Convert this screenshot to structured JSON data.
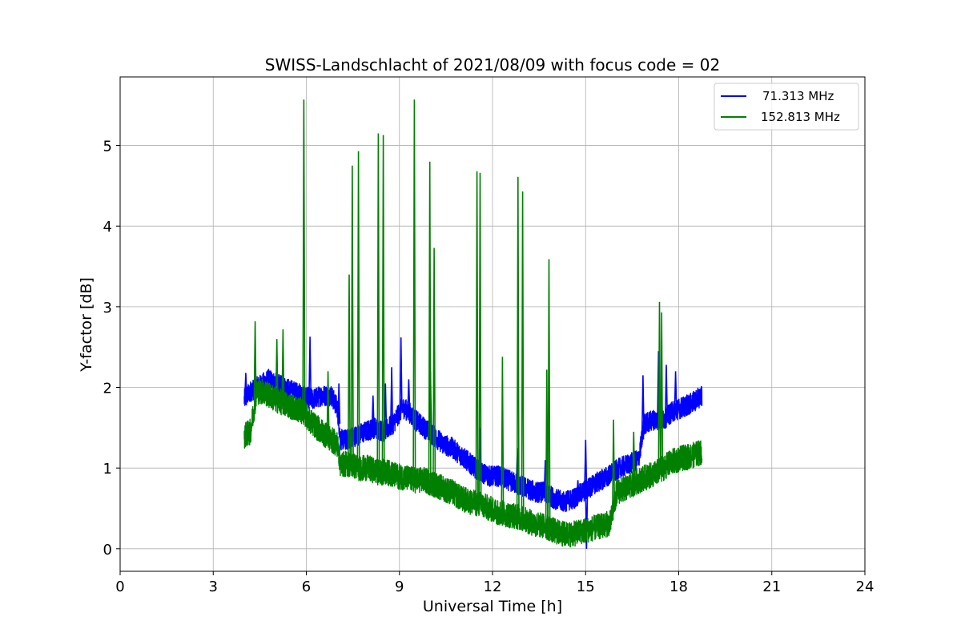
{
  "chart_data": {
    "type": "line",
    "title": "SWISS-Landschlacht of 2021/08/09 with focus code = 02",
    "xlabel": "Universal Time [h]",
    "ylabel": "Y-factor [dB]",
    "xlim": [
      0,
      24
    ],
    "ylim": [
      -0.28,
      5.85
    ],
    "xticks": [
      0,
      3,
      6,
      9,
      12,
      15,
      18,
      21,
      24
    ],
    "xtick_labels": [
      "0",
      "3",
      "6",
      "9",
      "12",
      "15",
      "18",
      "21",
      "24"
    ],
    "yticks": [
      0,
      1,
      2,
      3,
      4,
      5
    ],
    "ytick_labels": [
      "0",
      "1",
      "2",
      "3",
      "4",
      "5"
    ],
    "grid": true,
    "legend_position": "top-right",
    "series": [
      {
        "name": "71.313 MHz",
        "color": "#0000ff",
        "points": [
          [
            4.0,
            1.85
          ],
          [
            4.2,
            1.95
          ],
          [
            4.4,
            2.0
          ],
          [
            4.6,
            2.05
          ],
          [
            4.8,
            2.1
          ],
          [
            5.0,
            2.05
          ],
          [
            5.3,
            2.0
          ],
          [
            5.6,
            1.95
          ],
          [
            5.9,
            1.9
          ],
          [
            6.2,
            1.85
          ],
          [
            6.5,
            1.9
          ],
          [
            6.8,
            1.9
          ],
          [
            7.0,
            1.75
          ],
          [
            7.1,
            1.35
          ],
          [
            7.3,
            1.35
          ],
          [
            7.6,
            1.4
          ],
          [
            7.9,
            1.45
          ],
          [
            8.2,
            1.5
          ],
          [
            8.5,
            1.45
          ],
          [
            8.8,
            1.55
          ],
          [
            9.1,
            1.75
          ],
          [
            9.3,
            1.7
          ],
          [
            9.5,
            1.6
          ],
          [
            9.8,
            1.5
          ],
          [
            10.1,
            1.4
          ],
          [
            10.4,
            1.3
          ],
          [
            10.7,
            1.25
          ],
          [
            11.0,
            1.15
          ],
          [
            11.3,
            1.05
          ],
          [
            11.6,
            0.95
          ],
          [
            11.9,
            0.9
          ],
          [
            12.2,
            0.9
          ],
          [
            12.5,
            0.85
          ],
          [
            12.8,
            0.8
          ],
          [
            13.1,
            0.75
          ],
          [
            13.4,
            0.7
          ],
          [
            13.7,
            0.7
          ],
          [
            14.0,
            0.62
          ],
          [
            14.3,
            0.58
          ],
          [
            14.6,
            0.62
          ],
          [
            14.9,
            0.7
          ],
          [
            15.2,
            0.78
          ],
          [
            15.5,
            0.85
          ],
          [
            15.8,
            0.92
          ],
          [
            16.1,
            1.0
          ],
          [
            16.4,
            1.05
          ],
          [
            16.7,
            1.1
          ],
          [
            16.9,
            1.55
          ],
          [
            17.2,
            1.6
          ],
          [
            17.5,
            1.6
          ],
          [
            17.8,
            1.7
          ],
          [
            18.1,
            1.75
          ],
          [
            18.4,
            1.8
          ],
          [
            18.75,
            1.9
          ]
        ],
        "spikes": [
          [
            4.05,
            2.18
          ],
          [
            6.12,
            2.63
          ],
          [
            7.05,
            2.05
          ],
          [
            8.15,
            1.9
          ],
          [
            8.55,
            2.05
          ],
          [
            8.75,
            2.25
          ],
          [
            9.05,
            2.62
          ],
          [
            9.3,
            2.1
          ],
          [
            10.0,
            2.2
          ],
          [
            11.6,
            1.5
          ],
          [
            12.8,
            1.25
          ],
          [
            13.7,
            1.1
          ],
          [
            14.75,
            0.85
          ],
          [
            15.0,
            1.35
          ],
          [
            15.03,
            0.0
          ],
          [
            16.85,
            2.15
          ],
          [
            17.35,
            2.45
          ],
          [
            17.6,
            2.28
          ],
          [
            17.9,
            2.2
          ]
        ]
      },
      {
        "name": "152.813 MHz",
        "color": "#008000",
        "points": [
          [
            4.0,
            1.4
          ],
          [
            4.2,
            1.45
          ],
          [
            4.4,
            1.95
          ],
          [
            4.6,
            1.95
          ],
          [
            4.8,
            1.9
          ],
          [
            5.0,
            1.85
          ],
          [
            5.3,
            1.8
          ],
          [
            5.6,
            1.75
          ],
          [
            5.9,
            1.7
          ],
          [
            6.2,
            1.55
          ],
          [
            6.5,
            1.45
          ],
          [
            6.8,
            1.35
          ],
          [
            7.0,
            1.3
          ],
          [
            7.1,
            1.05
          ],
          [
            7.4,
            1.05
          ],
          [
            7.7,
            1.0
          ],
          [
            8.0,
            1.0
          ],
          [
            8.3,
            0.95
          ],
          [
            8.6,
            0.95
          ],
          [
            8.9,
            0.9
          ],
          [
            9.2,
            0.88
          ],
          [
            9.5,
            0.85
          ],
          [
            9.8,
            0.85
          ],
          [
            10.1,
            0.8
          ],
          [
            10.4,
            0.75
          ],
          [
            10.7,
            0.7
          ],
          [
            11.0,
            0.62
          ],
          [
            11.3,
            0.58
          ],
          [
            11.6,
            0.55
          ],
          [
            11.9,
            0.5
          ],
          [
            12.2,
            0.45
          ],
          [
            12.5,
            0.42
          ],
          [
            12.8,
            0.4
          ],
          [
            13.1,
            0.35
          ],
          [
            13.4,
            0.3
          ],
          [
            13.7,
            0.28
          ],
          [
            14.0,
            0.22
          ],
          [
            14.3,
            0.18
          ],
          [
            14.6,
            0.18
          ],
          [
            14.9,
            0.22
          ],
          [
            15.2,
            0.25
          ],
          [
            15.5,
            0.28
          ],
          [
            15.8,
            0.32
          ],
          [
            16.0,
            0.7
          ],
          [
            16.3,
            0.75
          ],
          [
            16.6,
            0.82
          ],
          [
            16.9,
            0.88
          ],
          [
            17.2,
            0.92
          ],
          [
            17.5,
            1.0
          ],
          [
            17.8,
            1.08
          ],
          [
            18.1,
            1.12
          ],
          [
            18.4,
            1.15
          ],
          [
            18.75,
            1.2
          ]
        ],
        "spikes": [
          [
            4.35,
            2.82
          ],
          [
            5.05,
            2.6
          ],
          [
            5.25,
            2.72
          ],
          [
            5.92,
            5.57
          ],
          [
            6.7,
            2.2
          ],
          [
            7.38,
            3.4
          ],
          [
            7.48,
            4.75
          ],
          [
            7.68,
            4.93
          ],
          [
            8.32,
            5.15
          ],
          [
            8.48,
            5.13
          ],
          [
            9.48,
            5.57
          ],
          [
            9.98,
            4.8
          ],
          [
            10.12,
            3.73
          ],
          [
            11.5,
            4.68
          ],
          [
            11.6,
            4.66
          ],
          [
            12.32,
            2.38
          ],
          [
            12.82,
            4.61
          ],
          [
            12.97,
            4.43
          ],
          [
            13.75,
            2.22
          ],
          [
            13.82,
            3.59
          ],
          [
            15.9,
            1.6
          ],
          [
            16.55,
            1.45
          ],
          [
            17.38,
            3.06
          ],
          [
            17.45,
            2.93
          ]
        ]
      }
    ]
  }
}
